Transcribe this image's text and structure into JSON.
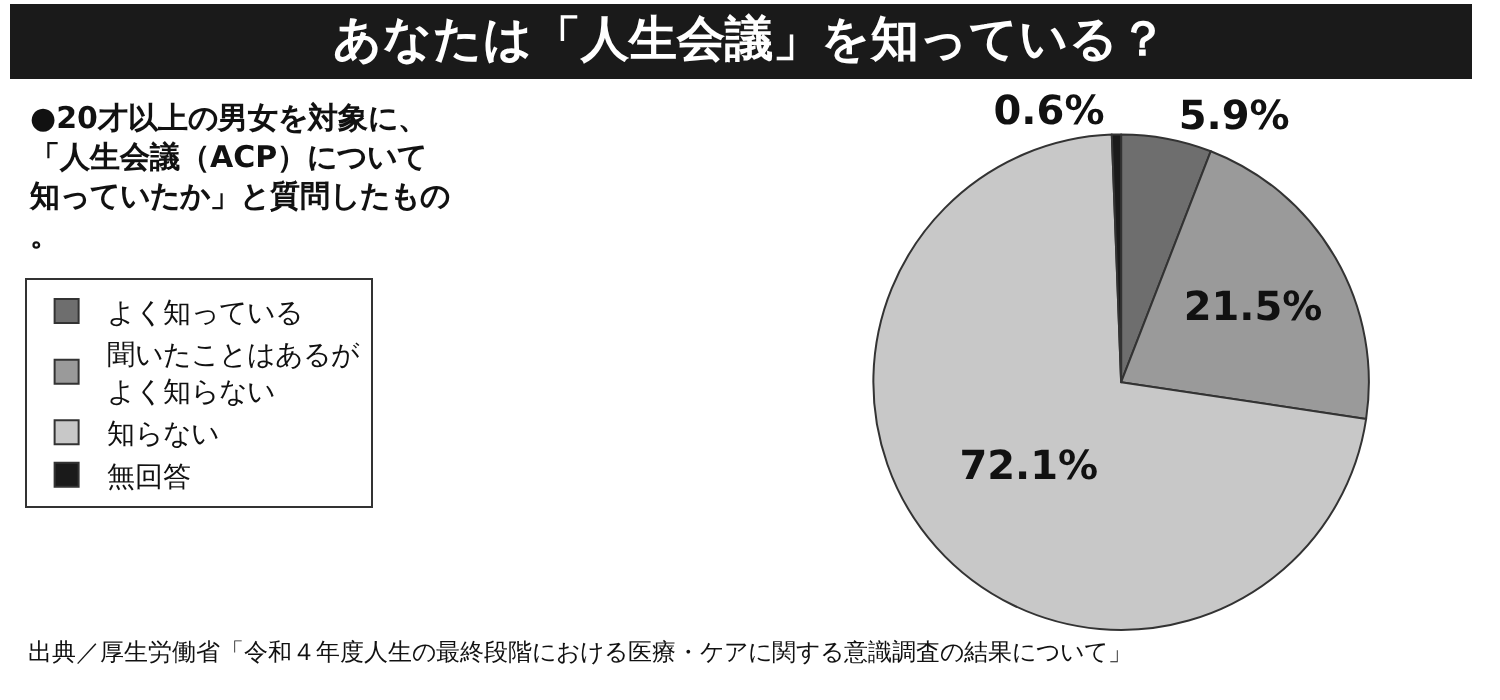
{
  "chart_data": {
    "type": "pie",
    "title": "あなたは「人生会議」を知っている？",
    "subtitle": "●20才以上の男女を対象に、「人生会議（ACP）について知っていたか」と質問したもの。",
    "categories": [
      "よく知っている",
      "聞いたことはあるがよく知らない",
      "知らない",
      "無回答"
    ],
    "values": [
      5.9,
      21.5,
      72.1,
      0.6
    ],
    "colors": [
      "#6e6e6e",
      "#9a9a9a",
      "#c8c8c8",
      "#1a1a1a"
    ],
    "value_labels": [
      "5.9%",
      "21.5%",
      "72.1%",
      "0.6%"
    ],
    "legend": "left",
    "annotations": [
      "出典／厚生労働省「令和４年度人生の最終段階における医療・ケアに関する意識調査の結果について」"
    ]
  }
}
